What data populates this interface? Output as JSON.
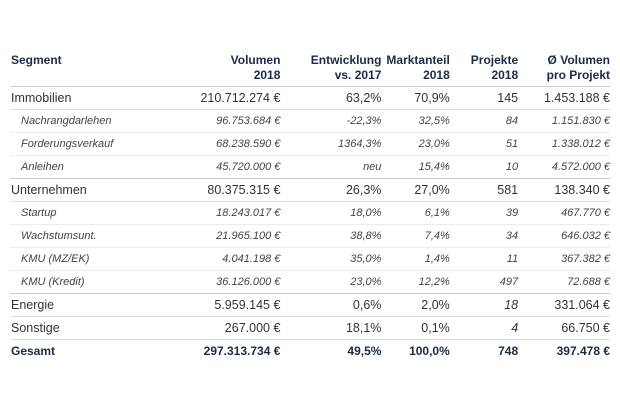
{
  "headers": {
    "segment": "Segment",
    "volumen": [
      "Volumen",
      "2018"
    ],
    "entwicklung": [
      "Entwicklung",
      "vs. 2017"
    ],
    "marktanteil": [
      "Marktanteil",
      "2018"
    ],
    "projekte": [
      "Projekte",
      "2018"
    ],
    "avg": [
      "Ø Volumen",
      "pro Projekt"
    ]
  },
  "rows": [
    {
      "segment": "Immobilien",
      "volumen": "210.712.274 €",
      "entwicklung": "63,2%",
      "marktanteil": "70,9%",
      "projekte": "145",
      "avg": "1.453.188 €"
    },
    {
      "segment": "Nachrangdarlehen",
      "volumen": "96.753.684 €",
      "entwicklung": "-22,3%",
      "marktanteil": "32,5%",
      "projekte": "84",
      "avg": "1.151.830 €"
    },
    {
      "segment": "Forderungsverkauf",
      "volumen": "68.238.590 €",
      "entwicklung": "1364,3%",
      "marktanteil": "23,0%",
      "projekte": "51",
      "avg": "1.338.012 €"
    },
    {
      "segment": "Anleihen",
      "volumen": "45.720.000 €",
      "entwicklung": "neu",
      "marktanteil": "15,4%",
      "projekte": "10",
      "avg": "4.572.000 €"
    },
    {
      "segment": "Unternehmen",
      "volumen": "80.375.315 €",
      "entwicklung": "26,3%",
      "marktanteil": "27,0%",
      "projekte": "581",
      "avg": "138.340 €"
    },
    {
      "segment": "Startup",
      "volumen": "18.243.017 €",
      "entwicklung": "18,0%",
      "marktanteil": "6,1%",
      "projekte": "39",
      "avg": "467.770 €"
    },
    {
      "segment": "Wachstumsunt.",
      "volumen": "21.965.100 €",
      "entwicklung": "38,8%",
      "marktanteil": "7,4%",
      "projekte": "34",
      "avg": "646.032 €"
    },
    {
      "segment": "KMU (MZ/EK)",
      "volumen": "4.041.198 €",
      "entwicklung": "35,0%",
      "marktanteil": "1,4%",
      "projekte": "11",
      "avg": "367.382 €"
    },
    {
      "segment": "KMU (Kredit)",
      "volumen": "36.126.000 €",
      "entwicklung": "23,0%",
      "marktanteil": "12,2%",
      "projekte": "497",
      "avg": "72.688 €"
    },
    {
      "segment": "Energie",
      "volumen": "5.959.145 €",
      "entwicklung": "0,6%",
      "marktanteil": "2,0%",
      "projekte": "18",
      "avg": "331.064 €"
    },
    {
      "segment": "Sonstige",
      "volumen": "267.000 €",
      "entwicklung": "18,1%",
      "marktanteil": "0,1%",
      "projekte": "4",
      "avg": "66.750 €"
    },
    {
      "segment": "Gesamt",
      "volumen": "297.313.734 €",
      "entwicklung": "49,5%",
      "marktanteil": "100,0%",
      "projekte": "748",
      "avg": "397.478 €"
    }
  ],
  "colors": {
    "header_text": "#1e2a45",
    "body_text": "#333333",
    "rule": "#cfcfcf"
  }
}
